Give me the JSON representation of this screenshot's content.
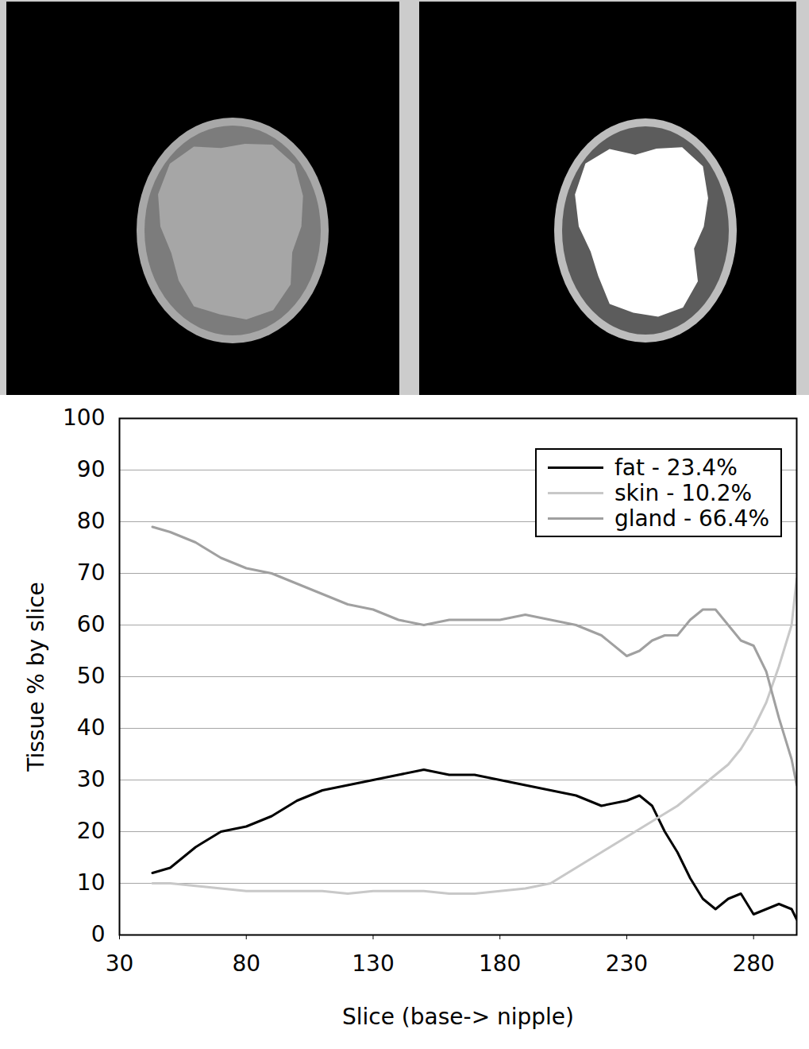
{
  "chart_data": {
    "type": "line",
    "x_label": "Slice (base-> nipple)",
    "y_label": "Tissue % by slice",
    "x": [
      43,
      50,
      60,
      70,
      80,
      90,
      100,
      110,
      120,
      130,
      140,
      150,
      160,
      170,
      180,
      190,
      200,
      210,
      220,
      230,
      235,
      240,
      245,
      250,
      255,
      260,
      265,
      270,
      275,
      280,
      285,
      290,
      295,
      297
    ],
    "series": [
      {
        "name": "fat - 23.4%",
        "color": "#000000",
        "values": [
          12,
          13,
          17,
          20,
          21,
          23,
          26,
          28,
          29,
          30,
          31,
          32,
          31,
          31,
          30,
          29,
          28,
          27,
          25,
          26,
          27,
          25,
          20,
          16,
          11,
          7,
          5,
          7,
          8,
          4,
          5,
          6,
          5,
          3
        ]
      },
      {
        "name": "skin - 10.2%",
        "color": "#c8c8c8",
        "values": [
          10,
          10,
          9.5,
          9,
          8.5,
          8.5,
          8.5,
          8.5,
          8,
          8.5,
          8.5,
          8.5,
          8,
          8,
          8.5,
          9,
          10,
          13,
          16,
          19,
          20.5,
          22,
          23.5,
          25,
          27,
          29,
          31,
          33,
          36,
          40,
          45,
          52,
          60,
          69
        ]
      },
      {
        "name": "gland - 66.4%",
        "color": "#a0a0a0",
        "values": [
          79,
          78,
          76,
          73,
          71,
          70,
          68,
          66,
          64,
          63,
          61,
          60,
          61,
          61,
          61,
          62,
          61,
          60,
          58,
          54,
          55,
          57,
          58,
          58,
          61,
          63,
          63,
          60,
          57,
          56,
          51,
          42,
          34,
          29
        ]
      }
    ],
    "xlim": [
      30,
      297
    ],
    "xticks": [
      30,
      80,
      130,
      180,
      230,
      280
    ],
    "ylim": [
      0,
      100
    ],
    "yticks": [
      0,
      10,
      20,
      30,
      40,
      50,
      60,
      70,
      80,
      90,
      100
    ],
    "grid": true,
    "legend": "top-right"
  }
}
